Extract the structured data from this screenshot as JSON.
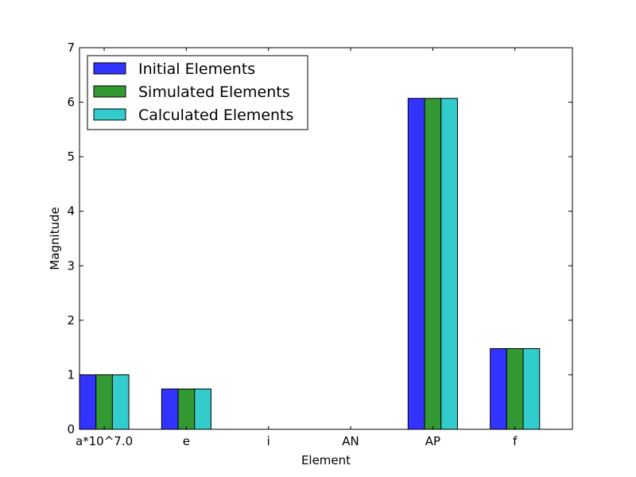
{
  "chart_data": {
    "type": "bar",
    "title": "",
    "xlabel": "Element",
    "ylabel": "Magnitude",
    "categories": [
      "a*10^7.0",
      "e",
      "i",
      "AN",
      "AP",
      "f"
    ],
    "ylim": [
      0,
      7
    ],
    "yticks": [
      "0",
      "1",
      "2",
      "3",
      "4",
      "5",
      "6",
      "7"
    ],
    "grid": false,
    "legend_position": "top-left",
    "series": [
      {
        "name": "Initial Elements",
        "color": "#3333ff",
        "values": [
          1.0,
          0.74,
          0.0,
          0.0,
          6.07,
          1.48
        ]
      },
      {
        "name": "Simulated Elements",
        "color": "#339933",
        "values": [
          1.0,
          0.74,
          0.0,
          0.0,
          6.07,
          1.48
        ]
      },
      {
        "name": "Calculated Elements",
        "color": "#33cccc",
        "values": [
          1.0,
          0.74,
          0.0,
          0.0,
          6.07,
          1.48
        ]
      }
    ]
  }
}
